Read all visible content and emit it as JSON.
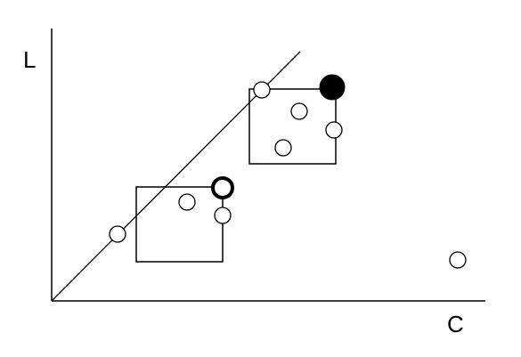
{
  "axes": {
    "y_label": "L",
    "x_label": "C"
  },
  "colors": {
    "stroke": "#000000",
    "background": "#ffffff"
  }
}
